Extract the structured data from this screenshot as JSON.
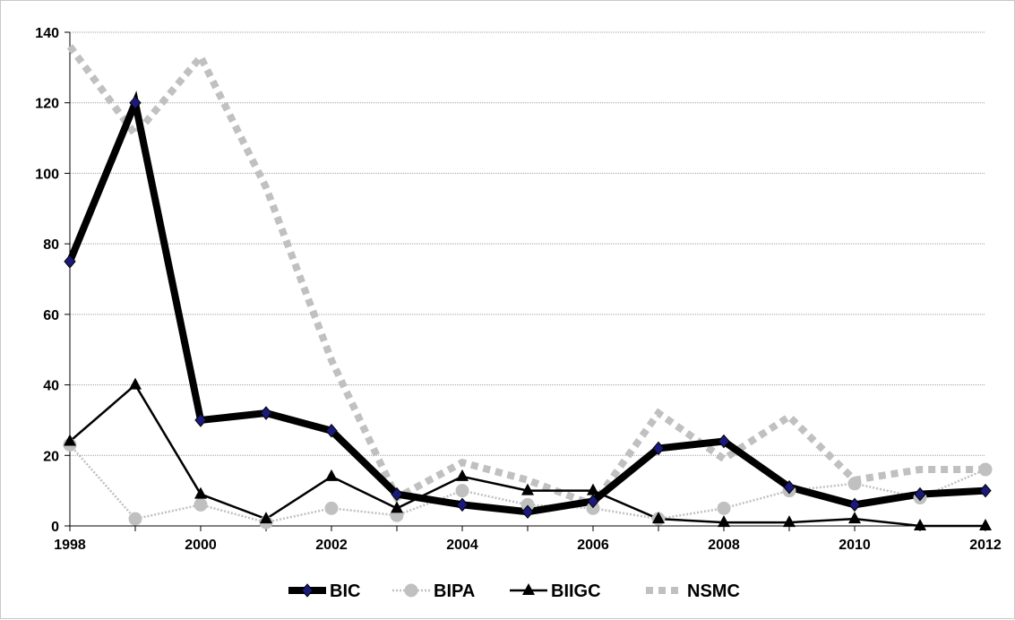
{
  "chart_data": {
    "type": "line",
    "title": "",
    "xlabel": "",
    "ylabel": "",
    "x": [
      1998,
      1999,
      2000,
      2001,
      2002,
      2003,
      2004,
      2005,
      2006,
      2007,
      2008,
      2009,
      2010,
      2011,
      2012
    ],
    "x_tick_labels": [
      "1998",
      "2000",
      "2002",
      "2004",
      "2006",
      "2008",
      "2010",
      "2012"
    ],
    "y_tick_labels": [
      "0",
      "20",
      "40",
      "60",
      "80",
      "100",
      "120",
      "140"
    ],
    "xlim": [
      1998,
      2012
    ],
    "ylim": [
      0,
      140
    ],
    "grid": true,
    "legend_position": "bottom",
    "series": [
      {
        "name": "BIC",
        "values": [
          75,
          120,
          30,
          32,
          27,
          9,
          6,
          4,
          7,
          22,
          24,
          11,
          6,
          9,
          10
        ],
        "color": "#000000",
        "marker": "diamond",
        "marker_color": "#1a1a7a",
        "line_style": "solid-thick"
      },
      {
        "name": "BIPA",
        "values": [
          23,
          2,
          6,
          1,
          5,
          3,
          10,
          6,
          5,
          2,
          5,
          10,
          12,
          8,
          16
        ],
        "color": "#c0c0c0",
        "marker": "circle",
        "marker_color": "#c0c0c0",
        "line_style": "dotted-thin"
      },
      {
        "name": "BIIGC",
        "values": [
          24,
          40,
          9,
          2,
          14,
          5,
          14,
          10,
          10,
          2,
          1,
          1,
          2,
          0,
          0
        ],
        "color": "#000000",
        "marker": "triangle",
        "marker_color": "#000000",
        "line_style": "solid-thin"
      },
      {
        "name": "NSMC",
        "values": [
          136,
          111,
          133,
          96,
          47,
          8,
          18,
          13,
          6,
          32,
          19,
          31,
          13,
          16,
          16
        ],
        "color": "#c0c0c0",
        "marker": "none",
        "marker_color": "#c0c0c0",
        "line_style": "dashed-thick"
      }
    ]
  }
}
